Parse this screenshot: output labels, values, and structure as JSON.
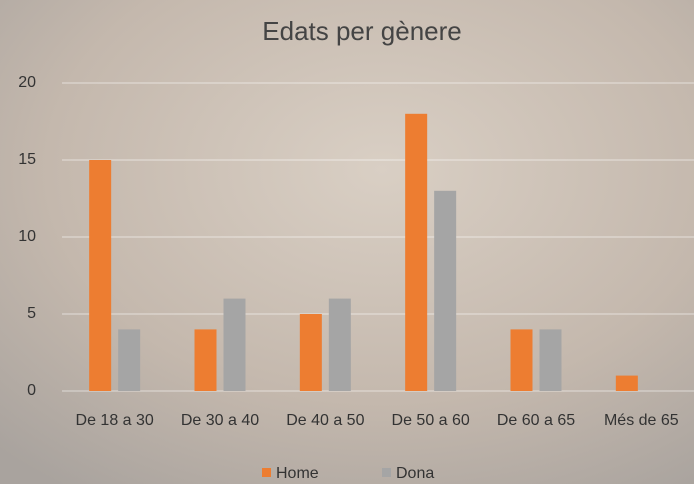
{
  "chart_data": {
    "type": "bar",
    "title": "Edats per gènere",
    "categories": [
      "De 18 a 30",
      "De 30 a 40",
      "De 40 a 50",
      "De 50 a 60",
      "De 60 a 65",
      "Més de 65"
    ],
    "series": [
      {
        "name": "Home",
        "color": "#ed7d31",
        "values": [
          15,
          4,
          5,
          18,
          4,
          1
        ]
      },
      {
        "name": "Dona",
        "color": "#a5a5a5",
        "values": [
          4,
          6,
          6,
          13,
          4,
          0
        ]
      }
    ],
    "ylim": [
      0,
      20
    ],
    "yticks": [
      0,
      5,
      10,
      15,
      20
    ],
    "grid": true,
    "legend": "bottom"
  }
}
